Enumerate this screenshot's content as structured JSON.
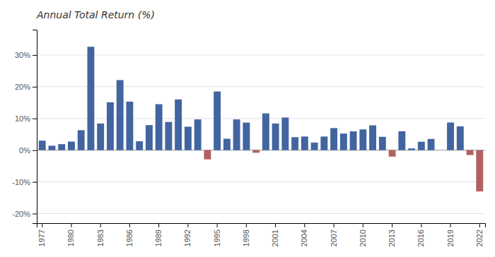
{
  "chart_data": {
    "type": "bar",
    "title": "Annual Total Return (%)",
    "categories": [
      "1977",
      null,
      null,
      "1980",
      null,
      null,
      "1983",
      null,
      null,
      "1986",
      null,
      null,
      "1989",
      null,
      null,
      "1992",
      null,
      null,
      "1995",
      null,
      null,
      "1998",
      null,
      null,
      "2001",
      null,
      null,
      "2004",
      null,
      null,
      "2007",
      null,
      null,
      "2010",
      null,
      null,
      "2013",
      null,
      null,
      "2016",
      null,
      null,
      "2019",
      null,
      null,
      "2022"
    ],
    "values": [
      3.0,
      1.4,
      1.9,
      2.7,
      6.3,
      32.6,
      8.4,
      15.1,
      22.1,
      15.3,
      2.8,
      7.9,
      14.5,
      8.9,
      16.0,
      7.4,
      9.7,
      -2.9,
      18.5,
      3.6,
      9.7,
      8.7,
      -0.8,
      11.6,
      8.4,
      10.3,
      4.1,
      4.3,
      2.4,
      4.3,
      6.97,
      5.24,
      5.93,
      6.54,
      7.84,
      4.21,
      -2.02,
      5.97,
      0.55,
      2.65,
      3.54,
      0.01,
      8.72,
      7.51,
      -1.54,
      -13.01
    ],
    "colors": [
      "#4265a0",
      "#4265a0",
      "#4265a0",
      "#4265a0",
      "#4265a0",
      "#4265a0",
      "#4265a0",
      "#4265a0",
      "#4265a0",
      "#4265a0",
      "#4265a0",
      "#4265a0",
      "#4265a0",
      "#4265a0",
      "#4265a0",
      "#4265a0",
      "#4265a0",
      "#b36060",
      "#4265a0",
      "#4265a0",
      "#4265a0",
      "#4265a0",
      "#b36060",
      "#4265a0",
      "#4265a0",
      "#4265a0",
      "#4265a0",
      "#4265a0",
      "#4265a0",
      "#4265a0",
      "#4265a0",
      "#4265a0",
      "#4265a0",
      "#4265a0",
      "#4265a0",
      "#4265a0",
      "#b36060",
      "#4265a0",
      "#4265a0",
      "#4265a0",
      "#4265a0",
      "#4265a0",
      "#4265a0",
      "#4265a0",
      "#b36060",
      "#b36060"
    ],
    "ylim": [
      -23,
      38
    ],
    "yticks": [
      {
        "value": -20,
        "label": "-20%"
      },
      {
        "value": -10,
        "label": "-10%"
      },
      {
        "value": 0,
        "label": "0%"
      },
      {
        "value": 10,
        "label": "10%"
      },
      {
        "value": 20,
        "label": "20%"
      },
      {
        "value": 30,
        "label": "30%"
      }
    ],
    "grid": true
  }
}
